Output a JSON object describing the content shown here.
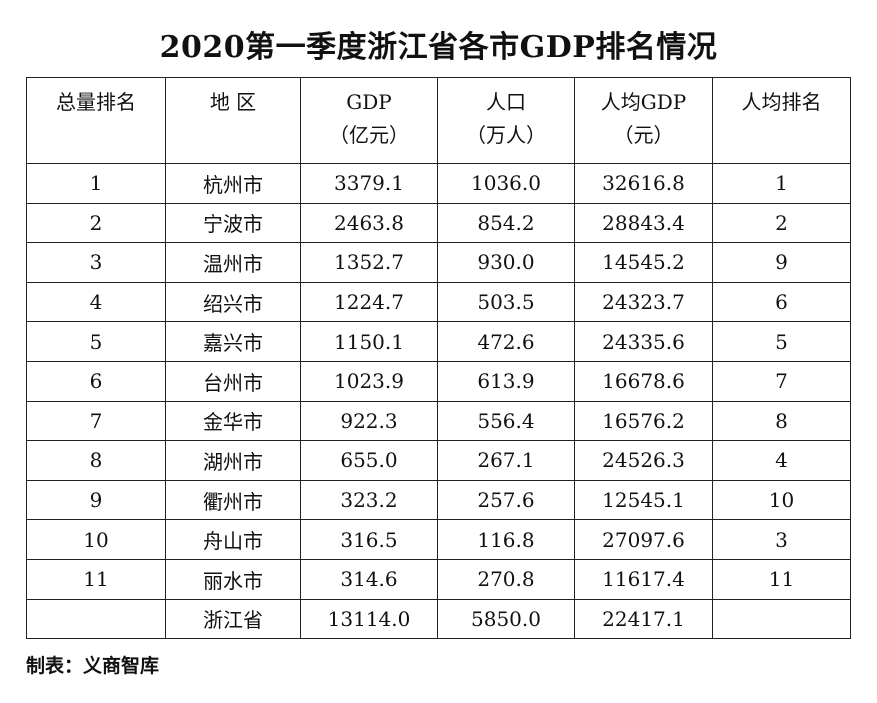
{
  "title": "2020第一季度浙江省各市GDP排名情况",
  "headers": [
    {
      "line1": "总量排名",
      "line2": ""
    },
    {
      "line1": "地  区",
      "line2": ""
    },
    {
      "line1": "GDP",
      "line2": "（亿元）"
    },
    {
      "line1": "人口",
      "line2": "（万人）"
    },
    {
      "line1": "人均GDP",
      "line2": "（元）"
    },
    {
      "line1": "人均排名",
      "line2": ""
    }
  ],
  "rows": [
    {
      "rank": "1",
      "region": "杭州市",
      "gdp": "3379.1",
      "pop": "1036.0",
      "per_capita": "32616.8",
      "pc_rank": "1"
    },
    {
      "rank": "2",
      "region": "宁波市",
      "gdp": "2463.8",
      "pop": "854.2",
      "per_capita": "28843.4",
      "pc_rank": "2"
    },
    {
      "rank": "3",
      "region": "温州市",
      "gdp": "1352.7",
      "pop": "930.0",
      "per_capita": "14545.2",
      "pc_rank": "9"
    },
    {
      "rank": "4",
      "region": "绍兴市",
      "gdp": "1224.7",
      "pop": "503.5",
      "per_capita": "24323.7",
      "pc_rank": "6"
    },
    {
      "rank": "5",
      "region": "嘉兴市",
      "gdp": "1150.1",
      "pop": "472.6",
      "per_capita": "24335.6",
      "pc_rank": "5"
    },
    {
      "rank": "6",
      "region": "台州市",
      "gdp": "1023.9",
      "pop": "613.9",
      "per_capita": "16678.6",
      "pc_rank": "7"
    },
    {
      "rank": "7",
      "region": "金华市",
      "gdp": "922.3",
      "pop": "556.4",
      "per_capita": "16576.2",
      "pc_rank": "8"
    },
    {
      "rank": "8",
      "region": "湖州市",
      "gdp": "655.0",
      "pop": "267.1",
      "per_capita": "24526.3",
      "pc_rank": "4"
    },
    {
      "rank": "9",
      "region": "衢州市",
      "gdp": "323.2",
      "pop": "257.6",
      "per_capita": "12545.1",
      "pc_rank": "10"
    },
    {
      "rank": "10",
      "region": "舟山市",
      "gdp": "316.5",
      "pop": "116.8",
      "per_capita": "27097.6",
      "pc_rank": "3"
    },
    {
      "rank": "11",
      "region": "丽水市",
      "gdp": "314.6",
      "pop": "270.8",
      "per_capita": "11617.4",
      "pc_rank": "11"
    },
    {
      "rank": "",
      "region": "浙江省",
      "gdp": "13114.0",
      "pop": "5850.0",
      "per_capita": "22417.1",
      "pc_rank": ""
    }
  ],
  "footer": "制表：义商智库"
}
